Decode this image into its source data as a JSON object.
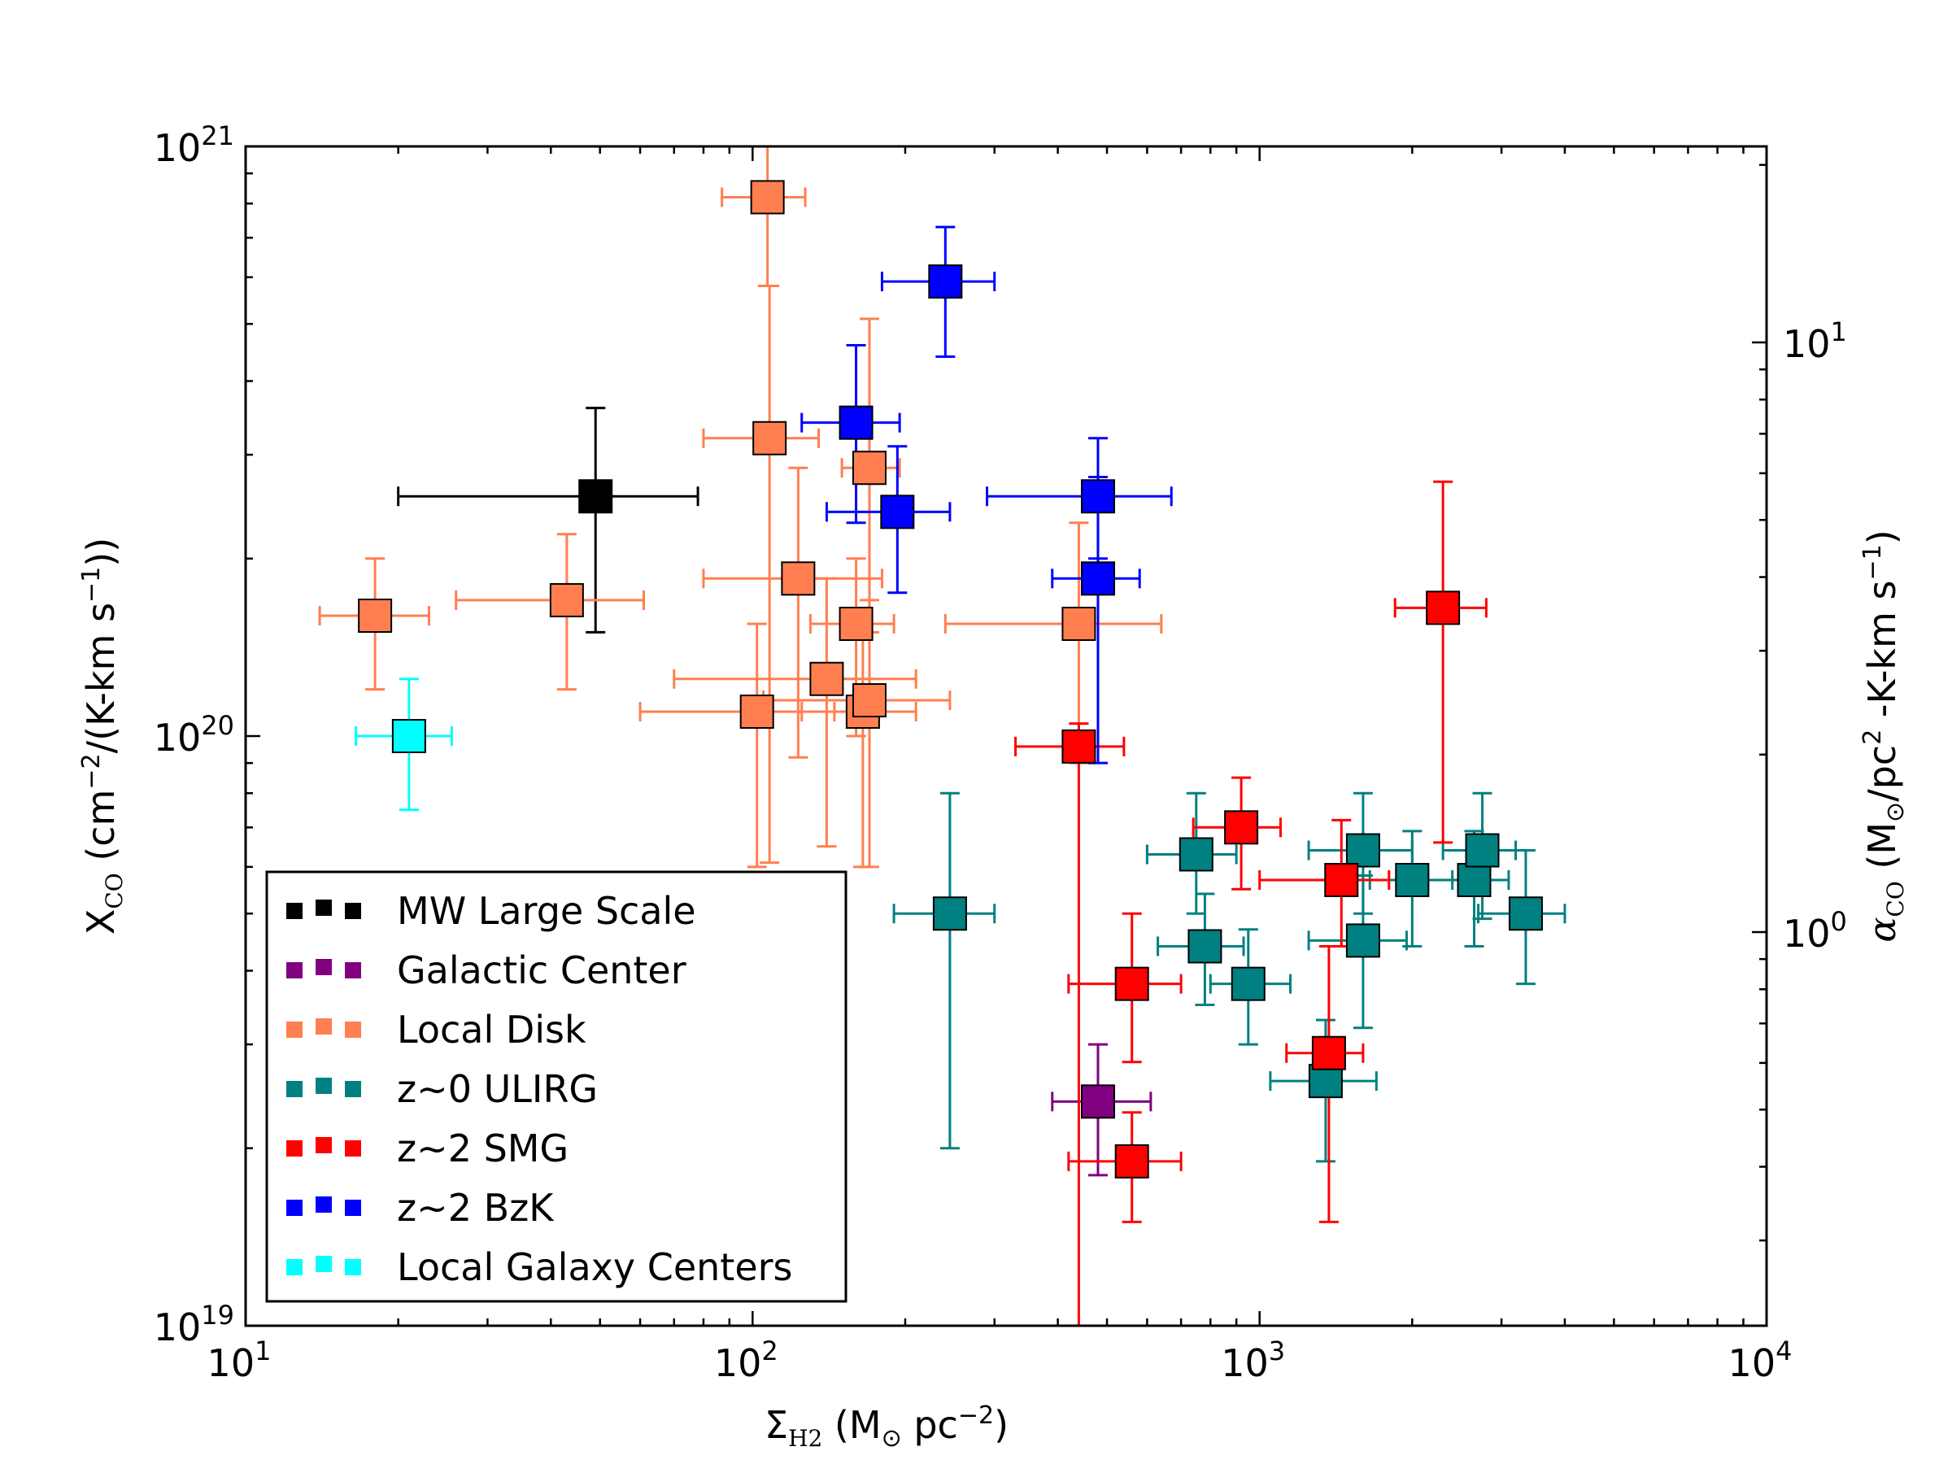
{
  "chart_data": {
    "type": "scatter",
    "title": "",
    "xlabel": "Σ_H2 (M_⊙ pc^-2)",
    "ylabel": "X_CO (cm^-2/(K-km s^-1))",
    "y2label": "α_CO (M_⊙/pc^2 -K-km s^-1)",
    "xscale": "log",
    "yscale": "log",
    "xlim": [
      10,
      10000
    ],
    "ylim": [
      1e+19,
      1e+21
    ],
    "y2lim": [
      0.215,
      21.5
    ],
    "x_ticks": [
      {
        "value": 10,
        "base": "10",
        "exp": "1"
      },
      {
        "value": 100,
        "base": "10",
        "exp": "2"
      },
      {
        "value": 1000,
        "base": "10",
        "exp": "3"
      },
      {
        "value": 10000,
        "base": "10",
        "exp": "4"
      }
    ],
    "y_ticks": [
      {
        "value": 1e+19,
        "base": "10",
        "exp": "19"
      },
      {
        "value": 1e+20,
        "base": "10",
        "exp": "20"
      },
      {
        "value": 1e+21,
        "base": "10",
        "exp": "21"
      }
    ],
    "y2_ticks": [
      {
        "value": 1,
        "base": "10",
        "exp": "0"
      },
      {
        "value": 10,
        "base": "10",
        "exp": "1"
      }
    ],
    "legend_position": "lower-left",
    "series": [
      {
        "name": "MW Large Scale",
        "color": "#000000",
        "points": [
          {
            "x": 49,
            "y": 2.55e+20,
            "xlo": 20,
            "xhi": 78,
            "ylo": 1.5e+20,
            "yhi": 3.6e+20
          }
        ]
      },
      {
        "name": "Galactic Center",
        "color": "#800080",
        "points": [
          {
            "x": 480,
            "y": 2.4e+19,
            "xlo": 390,
            "xhi": 610,
            "ylo": 1.8e+19,
            "yhi": 3e+19
          }
        ]
      },
      {
        "name": "Local Disk",
        "color": "#FF7F50",
        "points": [
          {
            "x": 107,
            "y": 8.2e+20,
            "xlo": 87,
            "xhi": 127,
            "ylo": 5.8e+20,
            "yhi": 1e+21
          },
          {
            "x": 108,
            "y": 3.2e+20,
            "xlo": 80,
            "xhi": 135,
            "ylo": 6.1e+19,
            "yhi": 5.8e+20
          },
          {
            "x": 170,
            "y": 2.85e+20,
            "xlo": 150,
            "xhi": 195,
            "ylo": 1.5e+20,
            "yhi": 5.1e+20
          },
          {
            "x": 123,
            "y": 1.85e+20,
            "xlo": 80,
            "xhi": 180,
            "ylo": 9.2e+19,
            "yhi": 2.85e+20
          },
          {
            "x": 18,
            "y": 1.6e+20,
            "xlo": 14,
            "xhi": 23,
            "ylo": 1.2e+20,
            "yhi": 2e+20
          },
          {
            "x": 43,
            "y": 1.7e+20,
            "xlo": 26,
            "xhi": 61,
            "ylo": 1.2e+20,
            "yhi": 2.2e+20
          },
          {
            "x": 160,
            "y": 1.55e+20,
            "xlo": 130,
            "xhi": 190,
            "ylo": 1e+20,
            "yhi": 2e+20
          },
          {
            "x": 440,
            "y": 1.55e+20,
            "xlo": 240,
            "xhi": 640,
            "ylo": 9e+19,
            "yhi": 2.3e+20
          },
          {
            "x": 140,
            "y": 1.25e+20,
            "xlo": 70,
            "xhi": 210,
            "ylo": 6.5e+19,
            "yhi": 1.85e+20
          },
          {
            "x": 102,
            "y": 1.1e+20,
            "xlo": 60,
            "xhi": 145,
            "ylo": 6e+19,
            "yhi": 1.55e+20
          },
          {
            "x": 165,
            "y": 1.1e+20,
            "xlo": 125,
            "xhi": 210,
            "ylo": 6e+19,
            "yhi": 1.6e+20
          },
          {
            "x": 170,
            "y": 1.15e+20,
            "xlo": 105,
            "xhi": 245,
            "ylo": 6e+19,
            "yhi": 1.7e+20
          }
        ]
      },
      {
        "name": "z~0 ULIRG",
        "color": "#008080",
        "points": [
          {
            "x": 245,
            "y": 5e+19,
            "xlo": 190,
            "xhi": 300,
            "ylo": 2e+19,
            "yhi": 8e+19
          },
          {
            "x": 750,
            "y": 6.3e+19,
            "xlo": 600,
            "xhi": 900,
            "ylo": 5e+19,
            "yhi": 8e+19
          },
          {
            "x": 780,
            "y": 4.4e+19,
            "xlo": 630,
            "xhi": 930,
            "ylo": 3.5e+19,
            "yhi": 5.4e+19
          },
          {
            "x": 950,
            "y": 3.8e+19,
            "xlo": 800,
            "xhi": 1150,
            "ylo": 3e+19,
            "yhi": 4.7e+19
          },
          {
            "x": 1350,
            "y": 2.6e+19,
            "xlo": 1050,
            "xhi": 1700,
            "ylo": 1.9e+19,
            "yhi": 3.3e+19
          },
          {
            "x": 1600,
            "y": 6.4e+19,
            "xlo": 1250,
            "xhi": 2000,
            "ylo": 5e+19,
            "yhi": 8e+19
          },
          {
            "x": 1600,
            "y": 4.5e+19,
            "xlo": 1250,
            "xhi": 1950,
            "ylo": 3.2e+19,
            "yhi": 5.8e+19
          },
          {
            "x": 2000,
            "y": 5.7e+19,
            "xlo": 1650,
            "xhi": 2400,
            "ylo": 4.4e+19,
            "yhi": 6.9e+19
          },
          {
            "x": 2650,
            "y": 5.7e+19,
            "xlo": 2150,
            "xhi": 3100,
            "ylo": 4.4e+19,
            "yhi": 6.9e+19
          },
          {
            "x": 2750,
            "y": 6.4e+19,
            "xlo": 2300,
            "xhi": 3200,
            "ylo": 4.9e+19,
            "yhi": 8e+19
          },
          {
            "x": 3350,
            "y": 5e+19,
            "xlo": 2700,
            "xhi": 4000,
            "ylo": 3.8e+19,
            "yhi": 6.4e+19
          }
        ]
      },
      {
        "name": "z~2 SMG",
        "color": "#FF0000",
        "points": [
          {
            "x": 2300,
            "y": 1.65e+20,
            "xlo": 1850,
            "xhi": 2800,
            "ylo": 6.6e+19,
            "yhi": 2.7e+20
          },
          {
            "x": 440,
            "y": 9.6e+19,
            "xlo": 330,
            "xhi": 540,
            "ylo": 1e+19,
            "yhi": 1.05e+20
          },
          {
            "x": 920,
            "y": 7e+19,
            "xlo": 740,
            "xhi": 1100,
            "ylo": 5.5e+19,
            "yhi": 8.5e+19
          },
          {
            "x": 1450,
            "y": 5.7e+19,
            "xlo": 1000,
            "xhi": 1800,
            "ylo": 4.4e+19,
            "yhi": 7.2e+19
          },
          {
            "x": 560,
            "y": 3.8e+19,
            "xlo": 420,
            "xhi": 700,
            "ylo": 2.8e+19,
            "yhi": 5e+19
          },
          {
            "x": 1370,
            "y": 2.9e+19,
            "xlo": 1130,
            "xhi": 1600,
            "ylo": 1.5e+19,
            "yhi": 4.4e+19
          },
          {
            "x": 560,
            "y": 1.9e+19,
            "xlo": 420,
            "xhi": 700,
            "ylo": 1.5e+19,
            "yhi": 2.3e+19
          }
        ]
      },
      {
        "name": "z~2 BzK",
        "color": "#0000FF",
        "points": [
          {
            "x": 240,
            "y": 5.9e+20,
            "xlo": 180,
            "xhi": 300,
            "ylo": 4.4e+20,
            "yhi": 7.3e+20
          },
          {
            "x": 160,
            "y": 3.4e+20,
            "xlo": 125,
            "xhi": 195,
            "ylo": 2.3e+20,
            "yhi": 4.6e+20
          },
          {
            "x": 193,
            "y": 2.4e+20,
            "xlo": 140,
            "xhi": 245,
            "ylo": 1.75e+20,
            "yhi": 3.1e+20
          },
          {
            "x": 480,
            "y": 2.55e+20,
            "xlo": 290,
            "xhi": 670,
            "ylo": 2e+20,
            "yhi": 3.2e+20
          },
          {
            "x": 480,
            "y": 1.85e+20,
            "xlo": 390,
            "xhi": 580,
            "ylo": 9e+19,
            "yhi": 2.75e+20
          }
        ]
      },
      {
        "name": "Local Galaxy Centers",
        "color": "#00FFFF",
        "points": [
          {
            "x": 21,
            "y": 1e+20,
            "xlo": 16.5,
            "xhi": 25.5,
            "ylo": 7.5e+19,
            "yhi": 1.25e+20
          }
        ]
      }
    ]
  }
}
